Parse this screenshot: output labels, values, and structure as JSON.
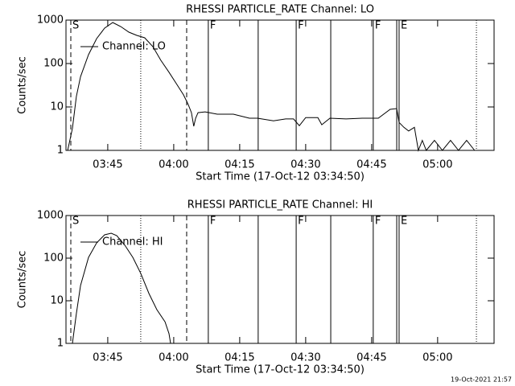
{
  "chart_data": [
    {
      "type": "line",
      "title": "RHESSI PARTICLE_RATE Channel: LO",
      "xlabel": "Start Time (17-Oct-12 03:34:50)",
      "ylabel": "Counts/sec",
      "log_y": true,
      "xlim": [
        3.5917,
        5.2139
      ],
      "ylim": [
        1,
        1000
      ],
      "xticks": [
        {
          "value": 3.75,
          "label": "03:45"
        },
        {
          "value": 4.0,
          "label": "04:00"
        },
        {
          "value": 4.25,
          "label": "04:15"
        },
        {
          "value": 4.5,
          "label": "04:30"
        },
        {
          "value": 4.75,
          "label": "04:45"
        },
        {
          "value": 5.0,
          "label": "05:00"
        }
      ],
      "yticks": [
        1,
        10,
        100,
        1000
      ],
      "series": [
        {
          "name": "Channel: LO",
          "color": "#000000",
          "x": [
            3.598,
            3.616,
            3.631,
            3.647,
            3.677,
            3.708,
            3.738,
            3.769,
            3.799,
            3.83,
            3.86,
            3.89,
            3.921,
            3.951,
            3.982,
            4.012,
            4.037,
            4.055,
            4.067,
            4.076,
            4.083,
            4.092,
            4.119,
            4.165,
            4.226,
            4.287,
            4.317,
            4.378,
            4.424,
            4.454,
            4.476,
            4.5,
            4.546,
            4.561,
            4.592,
            4.653,
            4.714,
            4.775,
            4.82,
            4.845,
            4.854,
            4.872,
            4.89,
            4.912,
            4.927,
            4.942,
            4.957,
            4.988,
            5.018,
            5.049,
            5.079,
            5.11,
            5.14
          ],
          "values": [
            1,
            3.2,
            17.5,
            50,
            160,
            375,
            653,
            880,
            711,
            528,
            445,
            391,
            245,
            119,
            63,
            33,
            19,
            11.4,
            7.4,
            3.6,
            5.5,
            7.4,
            7.7,
            6.8,
            6.8,
            5.5,
            5.5,
            4.8,
            5.3,
            5.3,
            3.7,
            5.7,
            5.7,
            3.9,
            5.5,
            5.3,
            5.5,
            5.5,
            8.8,
            9.2,
            4.4,
            3.4,
            2.8,
            3.4,
            1,
            1.7,
            1,
            1.7,
            1,
            1.7,
            1,
            1.7,
            1
          ]
        }
      ],
      "vlines": [
        {
          "x": 3.61,
          "style": "dashed",
          "label": "S"
        },
        {
          "x": 3.875,
          "style": "dotted"
        },
        {
          "x": 4.049,
          "style": "dashed"
        },
        {
          "x": 4.131,
          "style": "solid",
          "label": "F"
        },
        {
          "x": 4.32,
          "style": "solid"
        },
        {
          "x": 4.464,
          "style": "solid",
          "label": "F"
        },
        {
          "x": 4.595,
          "style": "solid"
        },
        {
          "x": 4.756,
          "style": "solid",
          "label": "F"
        },
        {
          "x": 4.845,
          "style": "solid"
        },
        {
          "x": 4.854,
          "style": "solid",
          "label": "E"
        },
        {
          "x": 5.147,
          "style": "dotted"
        }
      ]
    },
    {
      "type": "line",
      "title": "RHESSI PARTICLE_RATE Channel: HI",
      "xlabel": "Start Time (17-Oct-12 03:34:50)",
      "ylabel": "Counts/sec",
      "log_y": true,
      "xlim": [
        3.5917,
        5.2139
      ],
      "ylim": [
        1,
        1000
      ],
      "xticks": [
        {
          "value": 3.75,
          "label": "03:45"
        },
        {
          "value": 4.0,
          "label": "04:00"
        },
        {
          "value": 4.25,
          "label": "04:15"
        },
        {
          "value": 4.5,
          "label": "04:30"
        },
        {
          "value": 4.75,
          "label": "04:45"
        },
        {
          "value": 5.0,
          "label": "05:00"
        }
      ],
      "yticks": [
        1,
        10,
        100,
        1000
      ],
      "series": [
        {
          "name": "Channel: HI",
          "color": "#000000",
          "x": [
            3.616,
            3.631,
            3.647,
            3.677,
            3.708,
            3.738,
            3.763,
            3.784,
            3.815,
            3.845,
            3.875,
            3.906,
            3.936,
            3.967,
            3.982,
            3.988
          ],
          "values": [
            1,
            5,
            22.8,
            104,
            228,
            352,
            385,
            337,
            200,
            104,
            44,
            14.8,
            6.2,
            3.2,
            1.7,
            1
          ]
        }
      ],
      "vlines": [
        {
          "x": 3.61,
          "style": "dashed",
          "label": "S"
        },
        {
          "x": 3.875,
          "style": "dotted"
        },
        {
          "x": 4.049,
          "style": "dashed"
        },
        {
          "x": 4.131,
          "style": "solid",
          "label": "F"
        },
        {
          "x": 4.32,
          "style": "solid"
        },
        {
          "x": 4.464,
          "style": "solid",
          "label": "F"
        },
        {
          "x": 4.595,
          "style": "solid"
        },
        {
          "x": 4.756,
          "style": "solid",
          "label": "F"
        },
        {
          "x": 4.845,
          "style": "solid"
        },
        {
          "x": 4.854,
          "style": "solid",
          "label": "E"
        },
        {
          "x": 5.147,
          "style": "dotted"
        }
      ]
    }
  ],
  "footer": "19-Oct-2021 21:57"
}
